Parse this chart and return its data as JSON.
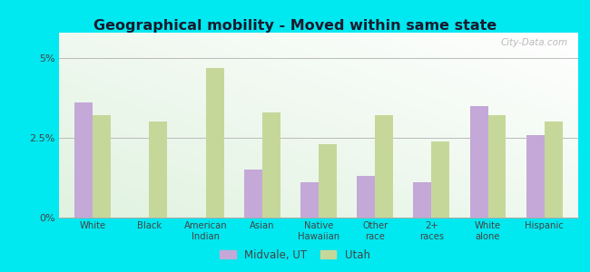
{
  "title": "Geographical mobility - Moved within same state",
  "categories": [
    "White",
    "Black",
    "American\nIndian",
    "Asian",
    "Native\nHawaiian",
    "Other\nrace",
    "2+\nraces",
    "White\nalone",
    "Hispanic"
  ],
  "midvale_values": [
    3.6,
    0.0,
    0.0,
    1.5,
    1.1,
    1.3,
    1.1,
    3.5,
    2.6
  ],
  "utah_values": [
    3.2,
    3.0,
    4.7,
    3.3,
    2.3,
    3.2,
    2.4,
    3.2,
    3.0
  ],
  "midvale_color": "#c4a8d8",
  "utah_color": "#c5d89a",
  "background_outer": "#00e8f0",
  "ylim": [
    0,
    5.8
  ],
  "ytick_positions": [
    0,
    2.5,
    5.0
  ],
  "ytick_labels": [
    "0%",
    "2.5%",
    "5%"
  ],
  "legend_labels": [
    "Midvale, UT",
    "Utah"
  ],
  "watermark": "City-Data.com",
  "bar_width": 0.32,
  "title_color": "#1a1a2e",
  "tick_color": "#444444"
}
